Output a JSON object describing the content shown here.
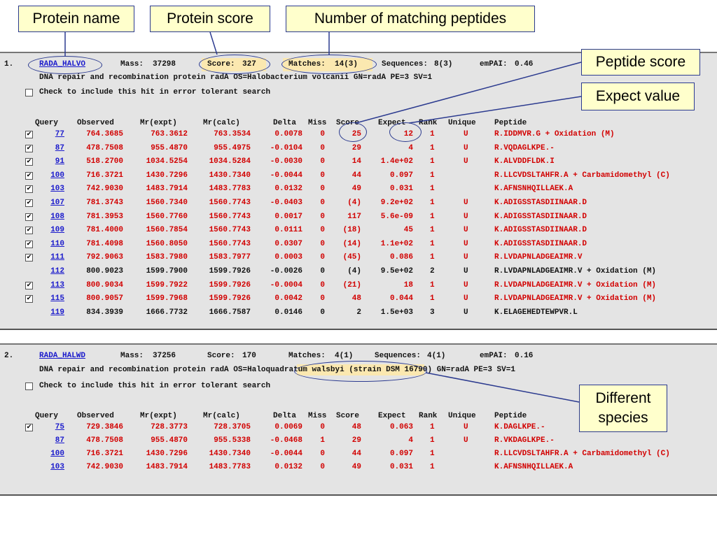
{
  "callouts": {
    "protein_name": "Protein name",
    "protein_score": "Protein score",
    "matching_peptides": "Number of matching peptides",
    "peptide_score": "Peptide score",
    "expect_value": "Expect value",
    "different_species_1": "Different",
    "different_species_2": "species"
  },
  "columns": [
    "Query",
    "Observed",
    "Mr(expt)",
    "Mr(calc)",
    "Delta",
    "Miss",
    "Score",
    "Expect",
    "Rank",
    "Unique",
    "Peptide"
  ],
  "hit1": {
    "index": "1.",
    "accession": "RADA_HALVO",
    "mass_label": "Mass:",
    "mass": "37298",
    "score_label": "Score:",
    "score": "327",
    "matches_label": "Matches:",
    "matches": "14(3)",
    "sequences_label": "Sequences:",
    "sequences": "8(3)",
    "empai_label": "emPAI:",
    "empai": "0.46",
    "description": "DNA repair and recombination protein radA OS=Halobacterium volcanii GN=radA PE=3 SV=1",
    "error_tolerant": "Check to include this hit in error tolerant search",
    "rows": [
      {
        "checked": true,
        "query": "77",
        "observed": "764.3685",
        "mr_expt": "763.3612",
        "mr_calc": "763.3534",
        "delta": "0.0078",
        "miss": "0",
        "score": "25",
        "expect": "12",
        "rank": "1",
        "unique": "U",
        "peptide": "R.IDDMVR.G + Oxidation (M)",
        "color": "red"
      },
      {
        "checked": true,
        "query": "87",
        "observed": "478.7508",
        "mr_expt": "955.4870",
        "mr_calc": "955.4975",
        "delta": "-0.0104",
        "miss": "0",
        "score": "29",
        "expect": "4",
        "rank": "1",
        "unique": "U",
        "peptide": "R.VQDAGLKPE.-",
        "color": "red"
      },
      {
        "checked": true,
        "query": "91",
        "observed": "518.2700",
        "mr_expt": "1034.5254",
        "mr_calc": "1034.5284",
        "delta": "-0.0030",
        "miss": "0",
        "score": "14",
        "expect": "1.4e+02",
        "rank": "1",
        "unique": "U",
        "peptide": "K.ALVDDFLDK.I",
        "color": "red"
      },
      {
        "checked": true,
        "query": "100",
        "observed": "716.3721",
        "mr_expt": "1430.7296",
        "mr_calc": "1430.7340",
        "delta": "-0.0044",
        "miss": "0",
        "score": "44",
        "expect": "0.097",
        "rank": "1",
        "unique": "",
        "peptide": "R.LLCVDSLTAHFR.A + Carbamidomethyl (C)",
        "color": "red"
      },
      {
        "checked": true,
        "query": "103",
        "observed": "742.9030",
        "mr_expt": "1483.7914",
        "mr_calc": "1483.7783",
        "delta": "0.0132",
        "miss": "0",
        "score": "49",
        "expect": "0.031",
        "rank": "1",
        "unique": "",
        "peptide": "K.AFNSNHQILLAEK.A",
        "color": "red"
      },
      {
        "checked": true,
        "query": "107",
        "observed": "781.3743",
        "mr_expt": "1560.7340",
        "mr_calc": "1560.7743",
        "delta": "-0.0403",
        "miss": "0",
        "score": "(4)",
        "expect": "9.2e+02",
        "rank": "1",
        "unique": "U",
        "peptide": "K.ADIGSSTASDIINAAR.D",
        "color": "red"
      },
      {
        "checked": true,
        "query": "108",
        "observed": "781.3953",
        "mr_expt": "1560.7760",
        "mr_calc": "1560.7743",
        "delta": "0.0017",
        "miss": "0",
        "score": "117",
        "expect": "5.6e-09",
        "rank": "1",
        "unique": "U",
        "peptide": "K.ADIGSSTASDIINAAR.D",
        "color": "red"
      },
      {
        "checked": true,
        "query": "109",
        "observed": "781.4000",
        "mr_expt": "1560.7854",
        "mr_calc": "1560.7743",
        "delta": "0.0111",
        "miss": "0",
        "score": "(18)",
        "expect": "45",
        "rank": "1",
        "unique": "U",
        "peptide": "K.ADIGSSTASDIINAAR.D",
        "color": "red"
      },
      {
        "checked": true,
        "query": "110",
        "observed": "781.4098",
        "mr_expt": "1560.8050",
        "mr_calc": "1560.7743",
        "delta": "0.0307",
        "miss": "0",
        "score": "(14)",
        "expect": "1.1e+02",
        "rank": "1",
        "unique": "U",
        "peptide": "K.ADIGSSTASDIINAAR.D",
        "color": "red"
      },
      {
        "checked": true,
        "query": "111",
        "observed": "792.9063",
        "mr_expt": "1583.7980",
        "mr_calc": "1583.7977",
        "delta": "0.0003",
        "miss": "0",
        "score": "(45)",
        "expect": "0.086",
        "rank": "1",
        "unique": "U",
        "peptide": "R.LVDAPNLADGEAIMR.V",
        "color": "red"
      },
      {
        "checked": false,
        "query": "112",
        "observed": "800.9023",
        "mr_expt": "1599.7900",
        "mr_calc": "1599.7926",
        "delta": "-0.0026",
        "miss": "0",
        "score": "(4)",
        "expect": "9.5e+02",
        "rank": "2",
        "unique": "U",
        "peptide": "R.LVDAPNLADGEAIMR.V + Oxidation (M)",
        "color": "black"
      },
      {
        "checked": true,
        "query": "113",
        "observed": "800.9034",
        "mr_expt": "1599.7922",
        "mr_calc": "1599.7926",
        "delta": "-0.0004",
        "miss": "0",
        "score": "(21)",
        "expect": "18",
        "rank": "1",
        "unique": "U",
        "peptide": "R.LVDAPNLADGEAIMR.V + Oxidation (M)",
        "color": "red"
      },
      {
        "checked": true,
        "query": "115",
        "observed": "800.9057",
        "mr_expt": "1599.7968",
        "mr_calc": "1599.7926",
        "delta": "0.0042",
        "miss": "0",
        "score": "48",
        "expect": "0.044",
        "rank": "1",
        "unique": "U",
        "peptide": "R.LVDAPNLADGEAIMR.V + Oxidation (M)",
        "color": "red"
      },
      {
        "checked": false,
        "query": "119",
        "observed": "834.3939",
        "mr_expt": "1666.7732",
        "mr_calc": "1666.7587",
        "delta": "0.0146",
        "miss": "0",
        "score": "2",
        "expect": "1.5e+03",
        "rank": "3",
        "unique": "U",
        "peptide": "K.ELAGEHEDTEWPVR.L",
        "color": "black"
      }
    ]
  },
  "hit2": {
    "index": "2.",
    "accession": "RADA_HALWD",
    "mass_label": "Mass:",
    "mass": "37256",
    "score_label": "Score:",
    "score": "170",
    "matches_label": "Matches:",
    "matches": "4(1)",
    "sequences_label": "Sequences:",
    "sequences": "4(1)",
    "empai_label": "emPAI:",
    "empai": "0.16",
    "description_pre": "DNA repair and recombination protein radA OS=",
    "species": "Haloquadratum walsbyi",
    "description_post": " (strain DSM 16790) GN=radA PE=3 SV=1",
    "error_tolerant": "Check to include this hit in error tolerant search",
    "rows": [
      {
        "checked": true,
        "query": "75",
        "observed": "729.3846",
        "mr_expt": "728.3773",
        "mr_calc": "728.3705",
        "delta": "0.0069",
        "miss": "0",
        "score": "48",
        "expect": "0.063",
        "rank": "1",
        "unique": "U",
        "peptide": "K.DAGLKPE.-",
        "color": "red"
      },
      {
        "checked": false,
        "query": "87",
        "observed": "478.7508",
        "mr_expt": "955.4870",
        "mr_calc": "955.5338",
        "delta": "-0.0468",
        "miss": "1",
        "score": "29",
        "expect": "4",
        "rank": "1",
        "unique": "U",
        "peptide": "R.VKDAGLKPE.-",
        "color": "red"
      },
      {
        "checked": false,
        "query": "100",
        "observed": "716.3721",
        "mr_expt": "1430.7296",
        "mr_calc": "1430.7340",
        "delta": "-0.0044",
        "miss": "0",
        "score": "44",
        "expect": "0.097",
        "rank": "1",
        "unique": "",
        "peptide": "R.LLCVDSLTAHFR.A + Carbamidomethyl (C)",
        "color": "red"
      },
      {
        "checked": false,
        "query": "103",
        "observed": "742.9030",
        "mr_expt": "1483.7914",
        "mr_calc": "1483.7783",
        "delta": "0.0132",
        "miss": "0",
        "score": "49",
        "expect": "0.031",
        "rank": "1",
        "unique": "",
        "peptide": "K.AFNSNHQILLAEK.A",
        "color": "red"
      }
    ]
  }
}
